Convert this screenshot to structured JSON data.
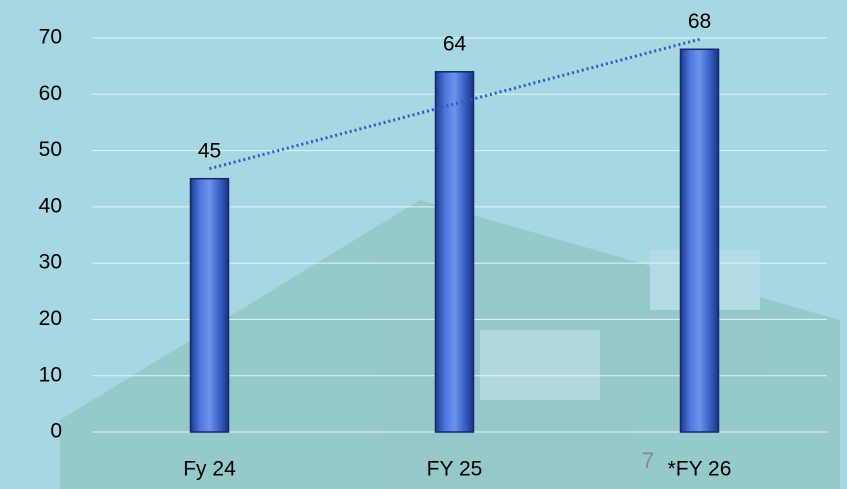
{
  "chart_data": {
    "type": "bar",
    "categories": [
      "Fy 24",
      "FY 25",
      "*FY 26"
    ],
    "values": [
      45,
      64,
      68
    ],
    "color": "#3b5fc9",
    "ylim": [
      0,
      70
    ],
    "yticks": [
      0,
      10,
      20,
      30,
      40,
      50,
      60,
      70
    ],
    "grid": true,
    "trendline": true
  },
  "page_number": "7"
}
